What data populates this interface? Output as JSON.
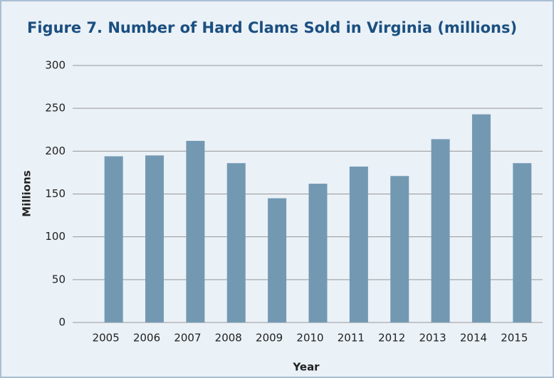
{
  "chart_data": {
    "type": "bar",
    "title": "Figure 7. Number of Hard Clams Sold in Virginia (millions)",
    "x_label": "Year",
    "y_label": "Millions",
    "categories": [
      "2005",
      "2006",
      "2007",
      "2008",
      "2009",
      "2010",
      "2011",
      "2012",
      "2013",
      "2014",
      "2015"
    ],
    "values": [
      194,
      195,
      212,
      186,
      145,
      162,
      182,
      171,
      214,
      243,
      186
    ],
    "color": "#7399b2",
    "ylim": [
      0,
      300
    ],
    "yticks": [
      0,
      50,
      100,
      150,
      200,
      250,
      300
    ],
    "grid": true
  }
}
